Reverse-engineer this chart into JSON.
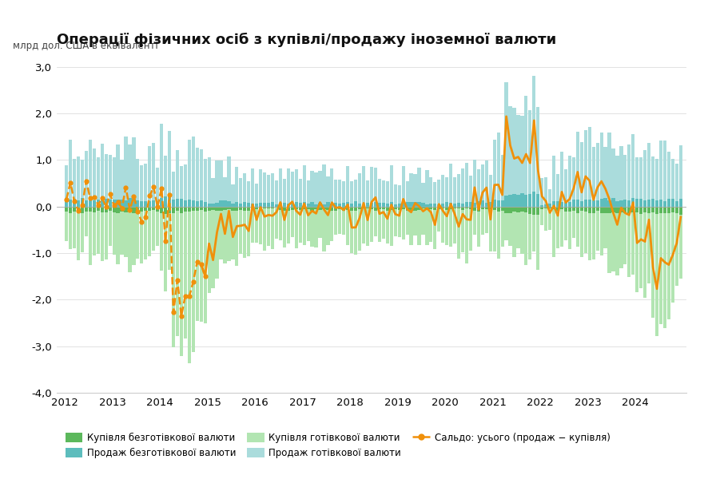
{
  "title": "Операції фізичних осіб з купівлі/продажу іноземної валюти",
  "ylabel": "млрд дол. США в еквіваленті",
  "ylim": [
    -4.0,
    3.2
  ],
  "yticks": [
    3.0,
    2.0,
    1.0,
    0.0,
    -1.0,
    -2.0,
    -3.0,
    -4.0
  ],
  "color_buy_cashless": "#5cb85c",
  "color_sell_cashless": "#5dbdbd",
  "color_buy_cash": "#b2e5b2",
  "color_sell_cash": "#aadcdc",
  "color_saldo_line": "#f0900a",
  "background": "#ffffff",
  "legend": [
    {
      "label": "Купівля безготівкової валюти",
      "color": "#5cb85c"
    },
    {
      "label": "Продаж безготівкової валюти",
      "color": "#5dbdbd"
    },
    {
      "label": "Купівля готівкової валюти",
      "color": "#b2e5b2"
    },
    {
      "label": "Продаж готівкової валюти",
      "color": "#aadcdc"
    },
    {
      "label": "Сальдо: усього (продаж − купівля)",
      "color": "#f0900a"
    }
  ]
}
